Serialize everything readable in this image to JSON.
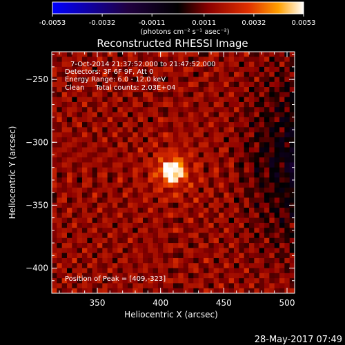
{
  "chart_data": {
    "type": "heatmap",
    "title": "Reconstructed RHESSI Image",
    "colorbar": {
      "ticks": [
        "-0.0053",
        "-0.0032",
        "-0.0011",
        "0.0011",
        "0.0032",
        "0.0053"
      ],
      "range": [
        -0.0053,
        0.0053
      ],
      "unit_label": "(photons cm⁻² s⁻¹ asec⁻²)",
      "colormap": [
        "#0000ff",
        "#1a0033",
        "#000000",
        "#8a0000",
        "#e03000",
        "#ff9000",
        "#ffffff"
      ]
    },
    "annotations": [
      "7-Oct-2014 21:37:52.000 to 21:47:52.000",
      "Detectors: 3F 6F 9F, Att 0",
      "Energy Range: 6.0 - 12.0 keV",
      "Clean     Total counts: 2.03E+04"
    ],
    "peak_label": "Position of Peak = [409,-323]",
    "peak": {
      "x": 409,
      "y": -323
    },
    "xlabel": "Heliocentric X (arcsec)",
    "ylabel": "Heliocentric Y (arcsec)",
    "xlim": [
      314,
      506
    ],
    "ylim": [
      -420,
      -228
    ],
    "xticks": [
      {
        "v": 350,
        "label": "350"
      },
      {
        "v": 400,
        "label": "400"
      },
      {
        "v": 450,
        "label": "450"
      },
      {
        "v": 500,
        "label": "500"
      }
    ],
    "yticks": [
      {
        "v": -250,
        "label": "−250"
      },
      {
        "v": -300,
        "label": "−300"
      },
      {
        "v": -350,
        "label": "−350"
      },
      {
        "v": -400,
        "label": "−400"
      }
    ],
    "grid": false
  },
  "footer": {
    "timestamp": "28-May-2017 07:49"
  }
}
